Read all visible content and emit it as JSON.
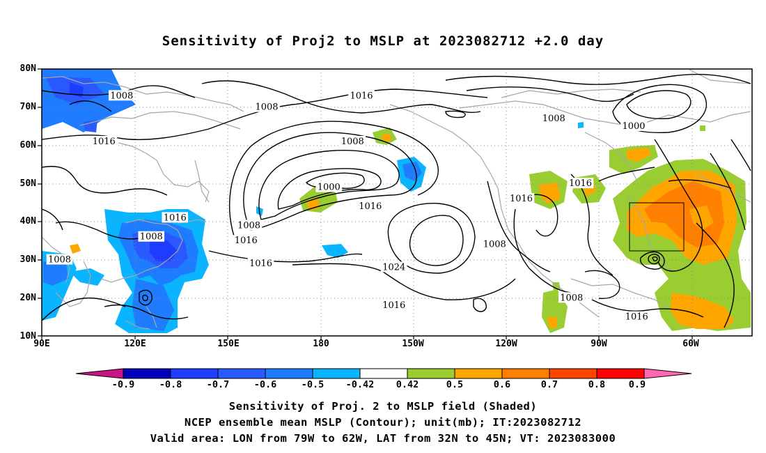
{
  "title": "Sensitivity of Proj2 to MSLP at 2023082712 +2.0 day",
  "axes": {
    "lat_labels": [
      "80N",
      "70N",
      "60N",
      "50N",
      "40N",
      "30N",
      "20N",
      "10N"
    ],
    "lon_labels": [
      "90E",
      "120E",
      "150E",
      "180",
      "150W",
      "120W",
      "90W",
      "60W"
    ]
  },
  "contour_labels": [
    {
      "text": "1008",
      "lon": 117,
      "lat": 73
    },
    {
      "text": "1008",
      "lon": 166,
      "lat": 70
    },
    {
      "text": "1016",
      "lon": 198,
      "lat": 73
    },
    {
      "text": "1016",
      "lon": 111,
      "lat": 61
    },
    {
      "text": "1008",
      "lon": 195,
      "lat": 61
    },
    {
      "text": "1008",
      "lon": 263,
      "lat": 67
    },
    {
      "text": "1000",
      "lon": 290,
      "lat": 65
    },
    {
      "text": "1000",
      "lon": 187,
      "lat": 49
    },
    {
      "text": "1016",
      "lon": 252,
      "lat": 46
    },
    {
      "text": "1016",
      "lon": 272,
      "lat": 50
    },
    {
      "text": "1016",
      "lon": 135,
      "lat": 41
    },
    {
      "text": "1008",
      "lon": 127,
      "lat": 36
    },
    {
      "text": "1008",
      "lon": 160,
      "lat": 39
    },
    {
      "text": "1016",
      "lon": 159,
      "lat": 35
    },
    {
      "text": "1016",
      "lon": 164,
      "lat": 29
    },
    {
      "text": "1016",
      "lon": 201,
      "lat": 44
    },
    {
      "text": "1008",
      "lon": 243,
      "lat": 34
    },
    {
      "text": "1024",
      "lon": 209,
      "lat": 28
    },
    {
      "text": "1016",
      "lon": 209,
      "lat": 18
    },
    {
      "text": "1008",
      "lon": 96,
      "lat": 30
    },
    {
      "text": "1008",
      "lon": 269,
      "lat": 20
    },
    {
      "text": "1016",
      "lon": 291,
      "lat": 15
    }
  ],
  "colorbar": {
    "ticks": [
      "-0.9",
      "-0.8",
      "-0.7",
      "-0.6",
      "-0.5",
      "-0.42",
      "0.42",
      "0.5",
      "0.6",
      "0.7",
      "0.8",
      "0.9"
    ],
    "colors": [
      "#0000bb",
      "#1e3cff",
      "#2a5aff",
      "#1f7cff",
      "#0ab4ff",
      "#ffffff",
      "#9acd32",
      "#ffa500",
      "#ff7f00",
      "#ff4500",
      "#ff0000"
    ],
    "low_cap": "#c71585",
    "high_cap": "#ff69b4"
  },
  "captions": {
    "line1": "Sensitivity of Proj. 2 to MSLP field (Shaded)",
    "line2": "NCEP ensemble mean MSLP (Contour); unit(mb); IT:2023082712",
    "line3": "Valid area: LON from 79W to 62W, LAT from 32N to 45N; VT: 2023083000"
  }
}
